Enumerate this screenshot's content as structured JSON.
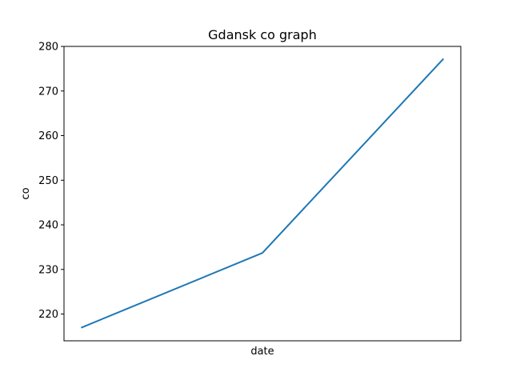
{
  "chart_data": {
    "type": "line",
    "title": "Gdansk co graph",
    "xlabel": "date",
    "ylabel": "co",
    "x_ticks_visible": false,
    "ylim": [
      214,
      280
    ],
    "y_ticks": [
      220,
      230,
      240,
      250,
      260,
      270,
      280
    ],
    "grid": false,
    "legend": "none",
    "series": [
      {
        "color": "#1f77b4",
        "values": [
          217.0,
          233.7,
          277.1
        ]
      }
    ]
  }
}
